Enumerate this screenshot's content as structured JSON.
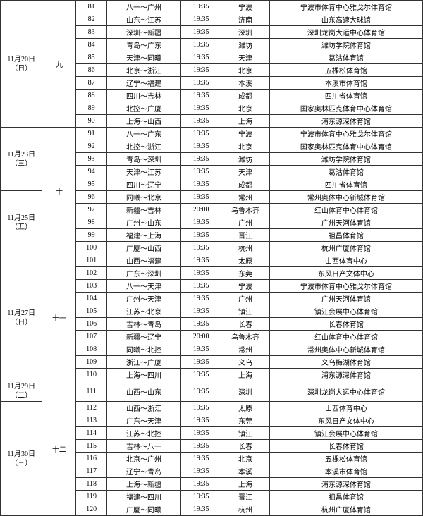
{
  "groups": [
    {
      "date_lines": [
        "11月20日",
        "（日）"
      ],
      "date_span": 10,
      "round": "九",
      "round_span": 10,
      "rows": [
        {
          "num": "81",
          "match": "八一～广州",
          "time": "19:35",
          "city": "宁波",
          "venue": "宁波市体育中心雅戈尔体育馆"
        },
        {
          "num": "82",
          "match": "山东～江苏",
          "time": "19:35",
          "city": "济南",
          "venue": "山东高速大球馆"
        },
        {
          "num": "83",
          "match": "深圳～新疆",
          "time": "19:35",
          "city": "深圳",
          "venue": "深圳龙岗大运中心体育馆"
        },
        {
          "num": "84",
          "match": "青岛～广东",
          "time": "19:35",
          "city": "潍坊",
          "venue": "潍坊学院体育馆"
        },
        {
          "num": "85",
          "match": "天津～同曦",
          "time": "19:35",
          "city": "天津",
          "venue": "葛沽体育馆"
        },
        {
          "num": "86",
          "match": "北京～浙江",
          "time": "19:35",
          "city": "北京",
          "venue": "五棵松体育馆"
        },
        {
          "num": "87",
          "match": "辽宁～福建",
          "time": "19:35",
          "city": "本溪",
          "venue": "本溪市体育馆"
        },
        {
          "num": "88",
          "match": "四川～吉林",
          "time": "19:35",
          "city": "成都",
          "venue": "四川省体育馆"
        },
        {
          "num": "89",
          "match": "北控～广厦",
          "time": "19:35",
          "city": "北京",
          "venue": "国家奥林匹克体育中心体育馆"
        },
        {
          "num": "90",
          "match": "上海～山西",
          "time": "19:35",
          "city": "上海",
          "venue": "浦东源深体育馆"
        }
      ]
    },
    {
      "date_lines": [
        "11月23日",
        "（三）"
      ],
      "date_span": 5,
      "round": "十",
      "round_span": 10,
      "rows": [
        {
          "num": "91",
          "match": "八一～广东",
          "time": "19:35",
          "city": "宁波",
          "venue": "宁波市体育中心雅戈尔体育馆"
        },
        {
          "num": "92",
          "match": "北控～浙江",
          "time": "19:35",
          "city": "北京",
          "venue": "国家奥林匹克体育中心体育馆"
        },
        {
          "num": "93",
          "match": "青岛～深圳",
          "time": "19:35",
          "city": "潍坊",
          "venue": "潍坊学院体育馆"
        },
        {
          "num": "94",
          "match": "天津～江苏",
          "time": "19:35",
          "city": "天津",
          "venue": "葛沽体育馆"
        },
        {
          "num": "95",
          "match": "四川～辽宁",
          "time": "19:35",
          "city": "成都",
          "venue": "四川省体育馆"
        }
      ]
    },
    {
      "date_lines": [
        "11月25日",
        "（五）"
      ],
      "date_span": 5,
      "round": null,
      "round_span": 0,
      "rows": [
        {
          "num": "96",
          "match": "同曦～北京",
          "time": "19:35",
          "city": "常州",
          "venue": "常州奥体中心新城体育馆"
        },
        {
          "num": "97",
          "match": "新疆～吉林",
          "time": "20:00",
          "city": "乌鲁木齐",
          "venue": "红山体育中心体育馆"
        },
        {
          "num": "98",
          "match": "广州～山东",
          "time": "19:35",
          "city": "广州",
          "venue": "广州天河体育馆"
        },
        {
          "num": "99",
          "match": "福建～上海",
          "time": "19:35",
          "city": "晋江",
          "venue": "祖昌体育馆"
        },
        {
          "num": "100",
          "match": "广厦～山西",
          "time": "19:35",
          "city": "杭州",
          "venue": "杭州广厦体育馆"
        }
      ]
    },
    {
      "date_lines": [
        "11月27日",
        "（日）"
      ],
      "date_span": 10,
      "round": "十一",
      "round_span": 10,
      "rows": [
        {
          "num": "101",
          "match": "山西～福建",
          "time": "19:35",
          "city": "太原",
          "venue": "山西体育中心"
        },
        {
          "num": "102",
          "match": "广东～深圳",
          "time": "19:35",
          "city": "东莞",
          "venue": "东风日产文体中心"
        },
        {
          "num": "103",
          "match": "八一～天津",
          "time": "19:35",
          "city": "宁波",
          "venue": "宁波市体育中心雅戈尔体育馆"
        },
        {
          "num": "104",
          "match": "广州～天津",
          "time": "19:35",
          "city": "广州",
          "venue": "广州天河体育馆"
        },
        {
          "num": "105",
          "match": "江苏～北京",
          "time": "19:35",
          "city": "镇江",
          "venue": "镇江会展中心体育馆"
        },
        {
          "num": "106",
          "match": "吉林～青岛",
          "time": "19:35",
          "city": "长春",
          "venue": "长春体育馆"
        },
        {
          "num": "107",
          "match": "新疆～辽宁",
          "time": "20:00",
          "city": "乌鲁木齐",
          "venue": "红山体育中心体育馆"
        },
        {
          "num": "108",
          "match": "同曦～北控",
          "time": "19:35",
          "city": "常州",
          "venue": "常州奥体中心新城体育馆"
        },
        {
          "num": "109",
          "match": "浙江～广厦",
          "time": "19:35",
          "city": "义乌",
          "venue": "义乌梅湖体育馆"
        },
        {
          "num": "110",
          "match": "上海～四川",
          "time": "19:35",
          "city": "上海",
          "venue": "浦东源深体育馆"
        }
      ]
    },
    {
      "date_lines": [
        "11月29日",
        "（二）"
      ],
      "date_span": 1,
      "round": "十二",
      "round_span": 10,
      "rows": [
        {
          "num": "111",
          "match": "山西～山东",
          "time": "19:35",
          "city": "深圳",
          "venue": "深圳龙岗大运中心体育馆",
          "tall": true
        }
      ]
    },
    {
      "date_lines": [
        "11月30日",
        "（三）"
      ],
      "date_span": 9,
      "round": null,
      "round_span": 0,
      "rows": [
        {
          "num": "112",
          "match": "山西～浙江",
          "time": "19:35",
          "city": "太原",
          "venue": "山西体育中心"
        },
        {
          "num": "113",
          "match": "广东～天津",
          "time": "19:35",
          "city": "东莞",
          "venue": "东风日产文体中心"
        },
        {
          "num": "114",
          "match": "江苏～北控",
          "time": "19:35",
          "city": "镇江",
          "venue": "镇江会展中心体育馆"
        },
        {
          "num": "115",
          "match": "吉林～八一",
          "time": "19:35",
          "city": "长春",
          "venue": "长春体育馆"
        },
        {
          "num": "116",
          "match": "北京～广州",
          "time": "19:35",
          "city": "北京",
          "venue": "五棵松体育馆"
        },
        {
          "num": "117",
          "match": "辽宁～青岛",
          "time": "19:35",
          "city": "本溪",
          "venue": "本溪市体育馆"
        },
        {
          "num": "118",
          "match": "上海～新疆",
          "time": "19:35",
          "city": "上海",
          "venue": "浦东源深体育馆"
        },
        {
          "num": "119",
          "match": "福建～四川",
          "time": "19:35",
          "city": "晋江",
          "venue": "祖昌体育馆"
        },
        {
          "num": "120",
          "match": "广厦～同曦",
          "time": "19:35",
          "city": "杭州",
          "venue": "杭州广厦体育馆"
        }
      ]
    }
  ]
}
